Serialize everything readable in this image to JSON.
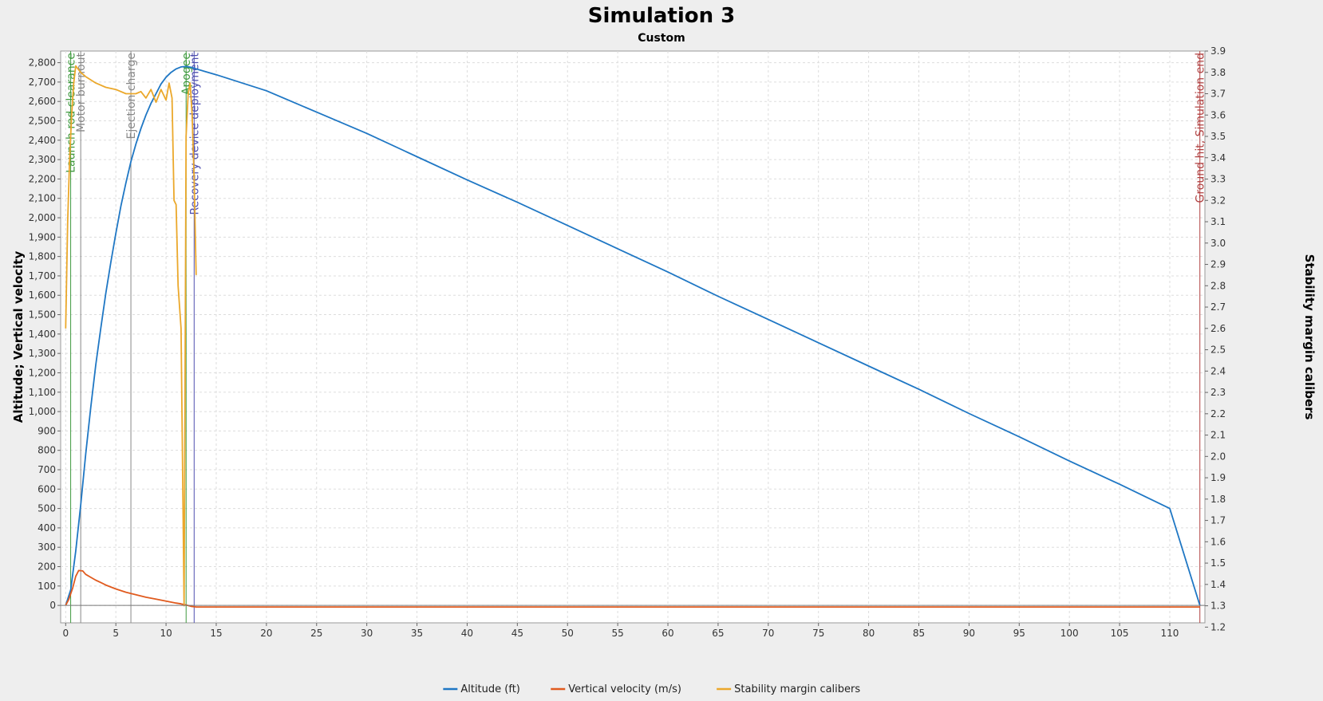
{
  "chart_data": {
    "type": "line",
    "title": "Simulation 3",
    "subtitle": "Custom",
    "xlabel": "",
    "ylabel_left": "Altitude; Vertical velocity",
    "ylabel_right": "Stability margin calibers",
    "xlim": [
      -0.5,
      113.5
    ],
    "ylim_left": [
      -90,
      2860
    ],
    "ylim_right": [
      1.22,
      3.9
    ],
    "x_ticks": [
      0,
      5,
      10,
      15,
      20,
      25,
      30,
      35,
      40,
      45,
      50,
      55,
      60,
      65,
      70,
      75,
      80,
      85,
      90,
      95,
      100,
      105,
      110
    ],
    "y_left_ticks": [
      0,
      100,
      200,
      300,
      400,
      500,
      600,
      700,
      800,
      900,
      1000,
      1100,
      1200,
      1300,
      1400,
      1500,
      1600,
      1700,
      1800,
      1900,
      2000,
      2100,
      2200,
      2300,
      2400,
      2500,
      2600,
      2700,
      2800
    ],
    "y_left_tick_labels": [
      "0",
      "100",
      "200",
      "300",
      "400",
      "500",
      "600",
      "700",
      "800",
      "900",
      "1,000",
      "1,100",
      "1,200",
      "1,300",
      "1,400",
      "1,500",
      "1,600",
      "1,700",
      "1,800",
      "1,900",
      "2,000",
      "2,100",
      "2,200",
      "2,300",
      "2,400",
      "2,500",
      "2,600",
      "2,700",
      "2,800"
    ],
    "y_right_ticks": [
      1.2,
      1.3,
      1.4,
      1.5,
      1.6,
      1.7,
      1.8,
      1.9,
      2.0,
      2.1,
      2.2,
      2.3,
      2.4,
      2.5,
      2.6,
      2.7,
      2.8,
      2.9,
      3.0,
      3.1,
      3.2,
      3.3,
      3.4,
      3.5,
      3.6,
      3.7,
      3.8,
      3.9
    ],
    "y_right_tick_labels": [
      "1.2",
      "1.3",
      "1.4",
      "1.5",
      "1.6",
      "1.7",
      "1.8",
      "1.9",
      "2.0",
      "2.1",
      "2.2",
      "2.3",
      "2.4",
      "2.5",
      "2.6",
      "2.7",
      "2.8",
      "2.9",
      "3.0",
      "3.1",
      "3.2",
      "3.3",
      "3.4",
      "3.5",
      "3.6",
      "3.7",
      "3.8",
      "3.9"
    ],
    "grid": true,
    "legend_position": "bottom",
    "series": [
      {
        "name": "Altitude (ft)",
        "axis": "left",
        "color": "#1f77c4",
        "x": [
          0,
          0.5,
          1,
          1.5,
          2,
          2.5,
          3,
          3.5,
          4,
          4.5,
          5,
          5.5,
          6,
          6.5,
          7,
          7.5,
          8,
          8.5,
          9,
          9.5,
          10,
          10.5,
          11,
          11.5,
          12,
          12.5,
          13,
          15,
          20,
          25,
          30,
          35,
          40,
          45,
          50,
          55,
          60,
          65,
          70,
          75,
          80,
          85,
          90,
          95,
          100,
          105,
          110,
          113
        ],
        "y": [
          0,
          80,
          280,
          520,
          780,
          1020,
          1240,
          1430,
          1610,
          1770,
          1920,
          2060,
          2180,
          2290,
          2380,
          2460,
          2530,
          2590,
          2640,
          2690,
          2725,
          2750,
          2768,
          2778,
          2780,
          2776,
          2768,
          2738,
          2655,
          2545,
          2435,
          2315,
          2195,
          2080,
          1960,
          1840,
          1720,
          1595,
          1475,
          1355,
          1235,
          1115,
          990,
          870,
          745,
          625,
          500,
          0
        ]
      },
      {
        "name": "Vertical velocity (m/s)",
        "axis": "left",
        "color": "#e05a1e",
        "x": [
          0,
          0.3,
          0.7,
          1,
          1.3,
          1.7,
          2,
          2.5,
          3,
          3.5,
          4,
          5,
          6,
          7,
          8,
          9,
          10,
          11,
          11.5,
          12,
          12.5,
          13,
          20,
          40,
          60,
          80,
          100,
          113
        ],
        "y": [
          0,
          30,
          90,
          150,
          180,
          178,
          160,
          145,
          130,
          118,
          105,
          85,
          68,
          55,
          42,
          32,
          22,
          12,
          8,
          2,
          -5,
          -8,
          -8,
          -8,
          -8,
          -8,
          -8,
          -8
        ]
      },
      {
        "name": "Stability margin calibers",
        "axis": "right",
        "color": "#eba82b",
        "x": [
          0,
          0.2,
          0.4,
          0.6,
          0.8,
          1,
          1.5,
          2,
          3,
          4,
          5,
          6,
          7,
          7.5,
          8,
          8.5,
          9,
          9.5,
          10,
          10.3,
          10.6,
          10.8,
          11,
          11.2,
          11.5,
          11.8,
          12,
          12.2,
          12.4,
          12.6,
          12.8,
          13
        ],
        "y": [
          2.6,
          3.1,
          3.4,
          3.6,
          3.75,
          3.83,
          3.8,
          3.78,
          3.75,
          3.73,
          3.72,
          3.7,
          3.7,
          3.71,
          3.68,
          3.72,
          3.66,
          3.72,
          3.67,
          3.75,
          3.68,
          3.2,
          3.18,
          2.8,
          2.6,
          1.3,
          3.5,
          3.7,
          3.75,
          3.6,
          3.3,
          2.85
        ]
      }
    ],
    "events": [
      {
        "name": "Launch rod clearance",
        "x": 0.5,
        "color": "#3f9a3f"
      },
      {
        "name": "Motor burnout",
        "x": 1.5,
        "color": "#888888"
      },
      {
        "name": "Ejection charge",
        "x": 6.5,
        "color": "#888888"
      },
      {
        "name": "Apogee",
        "x": 12.0,
        "color": "#3f9a3f"
      },
      {
        "name": "Recovery device deployment",
        "x": 12.8,
        "color": "#5050b0"
      },
      {
        "name": "Ground hit, Simulation end",
        "x": 113.0,
        "color": "#b04040"
      }
    ]
  }
}
